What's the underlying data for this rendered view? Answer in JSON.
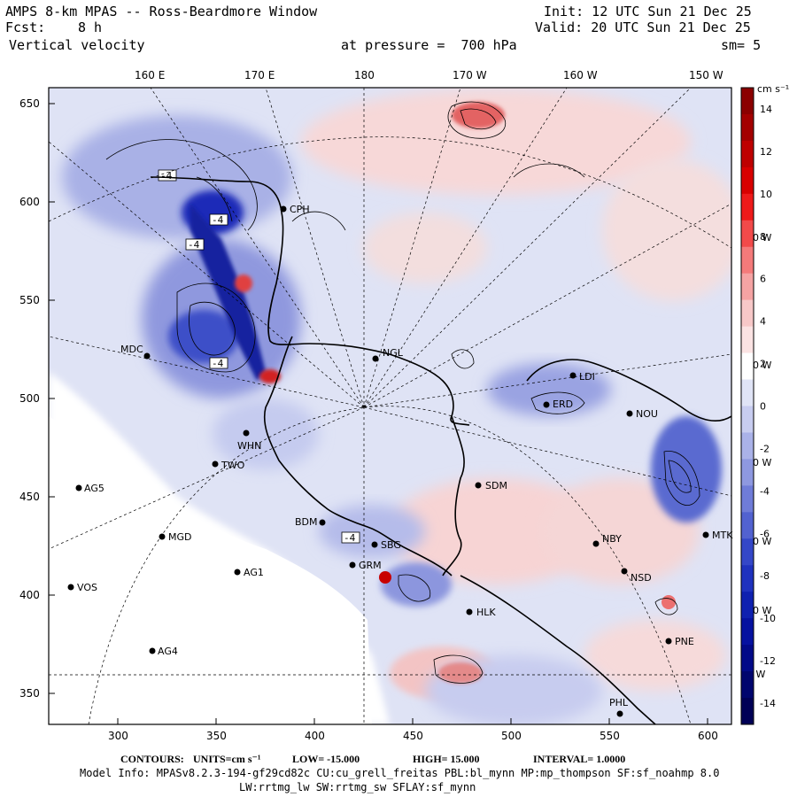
{
  "header": {
    "title": "AMPS 8-km MPAS -- Ross-Beardmore Window",
    "fcst_label": "Fcst:",
    "fcst_value": "8 h",
    "field": "Vertical velocity",
    "pressure": "at pressure =  700 hPa",
    "init": "Init: 12 UTC Sun 21 Dec 25",
    "valid": "Valid: 20 UTC Sun 21 Dec 25",
    "smooth": "sm= 5"
  },
  "map": {
    "top_lon_labels": [
      "160 E",
      "170 E",
      "180",
      "170 W",
      "160 W",
      "150 W"
    ],
    "x_ticks": [
      "300",
      "350",
      "400",
      "450",
      "500",
      "550",
      "600"
    ],
    "y_ticks": [
      "650",
      "600",
      "550",
      "500",
      "450",
      "400",
      "350"
    ],
    "right_lon_labels": [
      "140 W",
      "130 W",
      "120 W",
      "110 W",
      "100 W",
      "90 W"
    ],
    "contour_tags": [
      "-4",
      "-4",
      "-4",
      "-4",
      "-4"
    ],
    "stations": [
      {
        "id": "CPH"
      },
      {
        "id": "MDC"
      },
      {
        "id": "NGL"
      },
      {
        "id": "WHN"
      },
      {
        "id": "TWO"
      },
      {
        "id": "AG5"
      },
      {
        "id": "MGD"
      },
      {
        "id": "AG1"
      },
      {
        "id": "VOS"
      },
      {
        "id": "AG4"
      },
      {
        "id": "BDM"
      },
      {
        "id": "SBG"
      },
      {
        "id": "GRM"
      },
      {
        "id": "HLK"
      },
      {
        "id": "SDM"
      },
      {
        "id": "NBY"
      },
      {
        "id": "NSD"
      },
      {
        "id": "PNE"
      },
      {
        "id": "PHL"
      },
      {
        "id": "LDI"
      },
      {
        "id": "ERD"
      },
      {
        "id": "NOU"
      },
      {
        "id": "MTK"
      }
    ]
  },
  "colorbar": {
    "units": "cm s⁻¹",
    "labels": [
      "14",
      "12",
      "10",
      "8",
      "6",
      "4",
      "2",
      "0",
      "-2",
      "-4",
      "-6",
      "-8",
      "-10",
      "-12",
      "-14"
    ],
    "colors": [
      "#8b0000",
      "#a30000",
      "#be0000",
      "#d80000",
      "#ee1a1a",
      "#f24a4a",
      "#f47a7a",
      "#f5a3a3",
      "#f7c8c8",
      "#fbe3e3",
      "#ffffff",
      "#e0e4f6",
      "#c8cdf0",
      "#aab2e8",
      "#8e98e0",
      "#6f7cd8",
      "#5262d0",
      "#3447c8",
      "#1f32be",
      "#0f21b0",
      "#0612a0",
      "#020a88",
      "#00056e",
      "#000056"
    ],
    "accent_positive": "#d00000",
    "accent_negative": "#1020b0"
  },
  "footer": {
    "contours_label": "CONTOURS:",
    "units": "UNITS=cm s⁻¹",
    "low": "LOW= -15.000",
    "high": "HIGH= 15.000",
    "interval": "INTERVAL= 1.0000",
    "model_info": "Model Info: MPASv8.2.3-194-gf29cd82c CU:cu_grell_freitas PBL:bl_mynn MP:mp_thompson SF:sf_noahmp 8.0",
    "model_info2": "LW:rrtmg_lw SW:rrtmg_sw SFLAY:sf_mynn"
  }
}
